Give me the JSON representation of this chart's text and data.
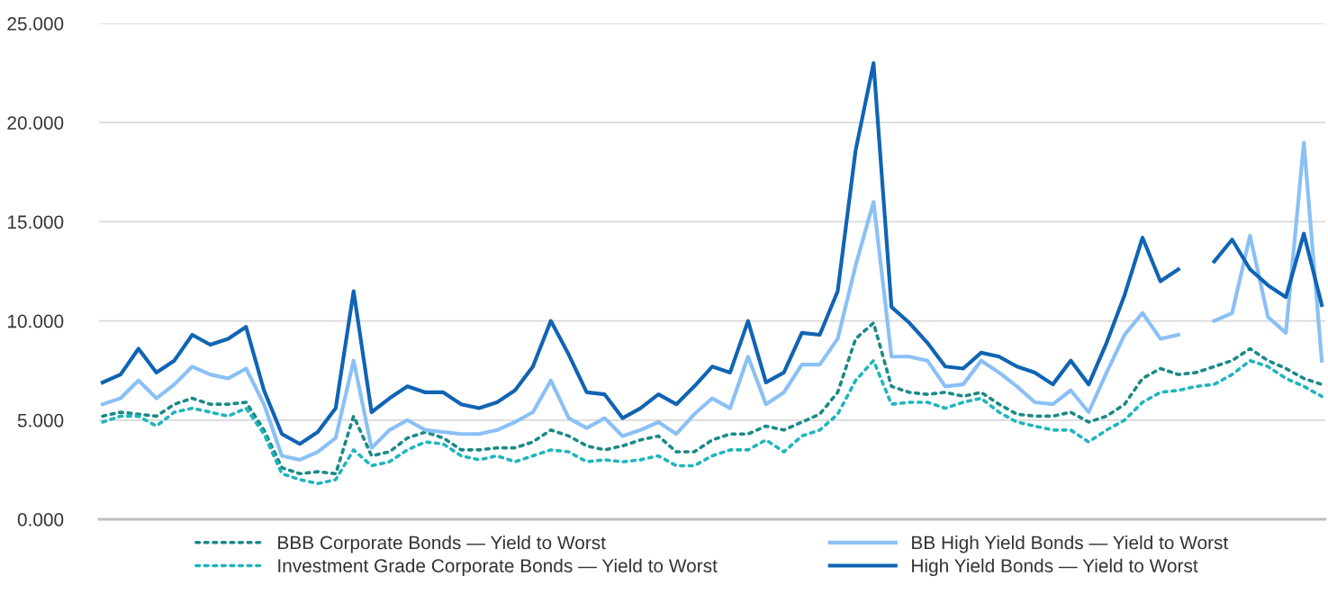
{
  "chart_data": {
    "type": "line",
    "categories": [
      null,
      null,
      null,
      null,
      null,
      null,
      null,
      null,
      null,
      null,
      null,
      null,
      null,
      null,
      null,
      null,
      null,
      null,
      null,
      null,
      null,
      null,
      null,
      null,
      null,
      null,
      null,
      null,
      null,
      null,
      null,
      null,
      null,
      null,
      null,
      null,
      null,
      null,
      null,
      null,
      null,
      null,
      null,
      null,
      null,
      null,
      null,
      null,
      null,
      null,
      null,
      null,
      null,
      null,
      null,
      null,
      null,
      null,
      null,
      null,
      null,
      null,
      null,
      null,
      null,
      null,
      null,
      null,
      null
    ],
    "ylim": [
      0,
      25
    ],
    "yticks": [
      {
        "value": 0,
        "label": "0.000"
      },
      {
        "value": 5,
        "label": "5.000"
      },
      {
        "value": 10,
        "label": "10.000"
      },
      {
        "value": 15,
        "label": "15.000"
      },
      {
        "value": 20,
        "label": "20.000"
      },
      {
        "value": 25,
        "label": "25.000"
      }
    ],
    "grid": "y",
    "legend": "bottom",
    "tick_labels": "y",
    "series": [
      {
        "name": "BBB Corporate Bonds — Yield to Worst",
        "color": "#1a8a87",
        "line_style": "dotted",
        "values": [
          5.2,
          5.4,
          5.3,
          5.2,
          5.8,
          6.1,
          5.8,
          5.8,
          5.9,
          4.5,
          2.6,
          2.3,
          2.4,
          2.3,
          5.2,
          3.2,
          3.4,
          4.1,
          4.4,
          4.1,
          3.5,
          3.5,
          3.6,
          3.6,
          3.9,
          4.5,
          4.2,
          3.7,
          3.5,
          3.7,
          4.0,
          4.2,
          3.4,
          3.4,
          4.0,
          4.3,
          4.3,
          4.7,
          4.5,
          4.9,
          5.3,
          6.4,
          9.1,
          9.9,
          6.7,
          6.4,
          6.3,
          6.4,
          6.2,
          6.4,
          5.8,
          5.3,
          5.2,
          5.2,
          5.4,
          4.9,
          5.2,
          5.8,
          7.1,
          7.6,
          7.3,
          7.4,
          7.7,
          8.0,
          8.6,
          8.0,
          7.6,
          7.1,
          6.8
        ]
      },
      {
        "name": "Investment Grade Corporate Bonds — Yield to Worst",
        "color": "#1fb5bd",
        "line_style": "dotted",
        "values": [
          4.9,
          5.2,
          5.2,
          4.7,
          5.4,
          5.6,
          5.4,
          5.2,
          5.6,
          4.3,
          2.3,
          2.0,
          1.8,
          2.0,
          3.5,
          2.7,
          2.9,
          3.5,
          3.9,
          3.8,
          3.2,
          3.0,
          3.2,
          2.9,
          3.2,
          3.5,
          3.4,
          2.9,
          3.0,
          2.9,
          3.0,
          3.2,
          2.7,
          2.7,
          3.2,
          3.5,
          3.5,
          4.0,
          3.4,
          4.2,
          4.5,
          5.3,
          7.0,
          8.0,
          5.8,
          5.9,
          5.9,
          5.6,
          5.9,
          6.1,
          5.4,
          4.9,
          4.7,
          4.5,
          4.5,
          3.9,
          4.5,
          5.0,
          5.9,
          6.4,
          6.5,
          6.7,
          6.8,
          7.3,
          8.0,
          7.7,
          7.1,
          6.7,
          6.2
        ]
      },
      {
        "name": "BB High Yield Bonds — Yield to Worst",
        "color": "#8ac0f5",
        "line_style": "solid",
        "values": [
          5.8,
          6.1,
          7.0,
          6.1,
          6.8,
          7.7,
          7.3,
          7.1,
          7.6,
          5.8,
          3.2,
          3.0,
          3.4,
          4.1,
          8.0,
          3.6,
          4.5,
          5.0,
          4.5,
          4.4,
          4.3,
          4.3,
          4.5,
          4.9,
          5.4,
          7.0,
          5.1,
          4.6,
          5.1,
          4.2,
          4.5,
          4.9,
          4.3,
          5.3,
          6.1,
          5.6,
          8.2,
          5.8,
          6.4,
          7.8,
          7.8,
          9.1,
          12.8,
          16.0,
          8.2,
          8.2,
          8.0,
          6.7,
          6.8,
          8.0,
          7.4,
          6.7,
          5.9,
          5.8,
          6.5,
          5.4,
          7.4,
          9.3,
          10.4,
          9.1,
          9.3,
          null,
          10.0,
          10.4,
          14.3,
          10.2,
          9.4,
          19.0,
          8.0
        ]
      },
      {
        "name": "High Yield Bonds — Yield to Worst",
        "color": "#1064b4",
        "line_style": "solid",
        "values": [
          6.9,
          7.3,
          8.6,
          7.4,
          8.0,
          9.3,
          8.8,
          9.1,
          9.7,
          6.5,
          4.3,
          3.8,
          4.4,
          5.6,
          11.5,
          5.4,
          6.1,
          6.7,
          6.4,
          6.4,
          5.8,
          5.6,
          5.9,
          6.5,
          7.7,
          10.0,
          8.3,
          6.4,
          6.3,
          5.1,
          5.6,
          6.3,
          5.8,
          6.7,
          7.7,
          7.4,
          10.0,
          6.9,
          7.4,
          9.4,
          9.3,
          11.5,
          18.6,
          23.0,
          10.7,
          9.9,
          8.9,
          7.7,
          7.6,
          8.4,
          8.2,
          7.7,
          7.4,
          6.8,
          8.0,
          6.8,
          8.9,
          11.3,
          14.2,
          12.0,
          12.6,
          null,
          13.0,
          14.1,
          12.6,
          11.8,
          11.2,
          14.4,
          10.8
        ]
      }
    ]
  }
}
